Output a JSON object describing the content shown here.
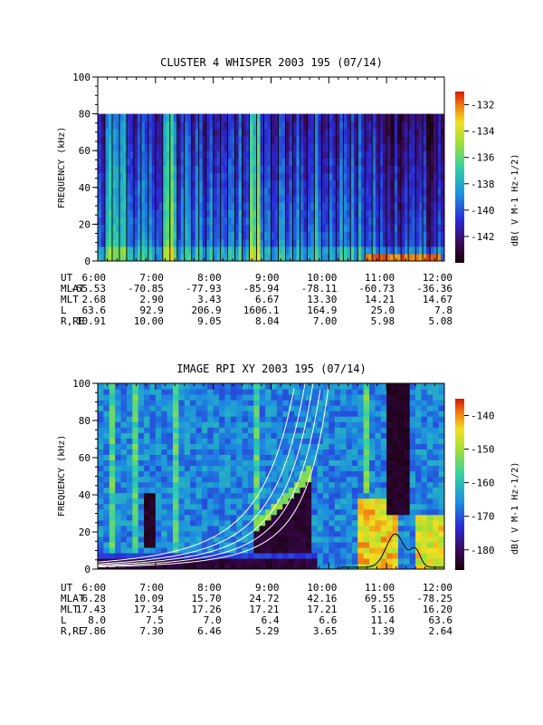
{
  "chart_data": [
    {
      "type": "heatmap",
      "title": "CLUSTER 4 WHISPER 2003 195 (07/14)",
      "ylabel": "FREQUENCY (kHz)",
      "ylim": [
        0,
        100
      ],
      "y_ticks": [
        "0",
        "20",
        "40",
        "60",
        "80",
        "100"
      ],
      "data_top_khz": 80,
      "colorbar": {
        "label": "dB( V M-1 Hz-1/2)",
        "range": [
          -144,
          -131
        ],
        "ticks": [
          "-132",
          "-134",
          "-136",
          "-138",
          "-140",
          "-142"
        ]
      },
      "ephemeris": {
        "row_labels": [
          "UT",
          "MLAT",
          "MLT",
          "L",
          "R,RE"
        ],
        "UT": [
          "6:00",
          "7:00",
          "8:00",
          "9:00",
          "10:00",
          "11:00",
          "12:00"
        ],
        "MLAT": [
          "-65.53",
          "-70.85",
          "-77.93",
          "-85.94",
          "-78.11",
          "-60.73",
          "-36.36"
        ],
        "MLT": [
          "2.68",
          "2.90",
          "3.43",
          "6.67",
          "13.30",
          "14.21",
          "14.67"
        ],
        "L": [
          "63.6",
          "92.9",
          "206.9",
          "1606.1",
          "164.9",
          "25.0",
          "7.8"
        ],
        "R,RE": [
          "10.91",
          "10.00",
          "9.05",
          "8.04",
          "7.00",
          "5.98",
          "5.08"
        ]
      }
    },
    {
      "type": "heatmap",
      "title": "IMAGE RPI XY 2003 195 (07/14)",
      "ylabel": "FREQUENCY (kHz)",
      "ylim": [
        0,
        100
      ],
      "y_ticks": [
        "0",
        "20",
        "40",
        "60",
        "80",
        "100"
      ],
      "colorbar": {
        "label": "dB( V M-1 Hz-1/2)",
        "range": [
          -186,
          -135
        ],
        "ticks": [
          "-140",
          "-150",
          "-160",
          "-170",
          "-180"
        ]
      },
      "ephemeris": {
        "row_labels": [
          "UT",
          "MLAT",
          "MLT",
          "L",
          "R,RE"
        ],
        "UT": [
          "6:00",
          "7:00",
          "8:00",
          "9:00",
          "10:00",
          "11:00",
          "12:00"
        ],
        "MLAT": [
          "6.28",
          "10.09",
          "15.70",
          "24.72",
          "42.16",
          "69.55",
          "-78.25"
        ],
        "MLT": [
          "17.43",
          "17.34",
          "17.26",
          "17.21",
          "17.21",
          "5.16",
          "16.20"
        ],
        "L": [
          "8.0",
          "7.5",
          "7.0",
          "6.4",
          "6.6",
          "11.4",
          "63.6"
        ],
        "R,RE": [
          "7.86",
          "7.30",
          "6.46",
          "5.29",
          "3.65",
          "1.39",
          "2.64"
        ]
      }
    }
  ]
}
